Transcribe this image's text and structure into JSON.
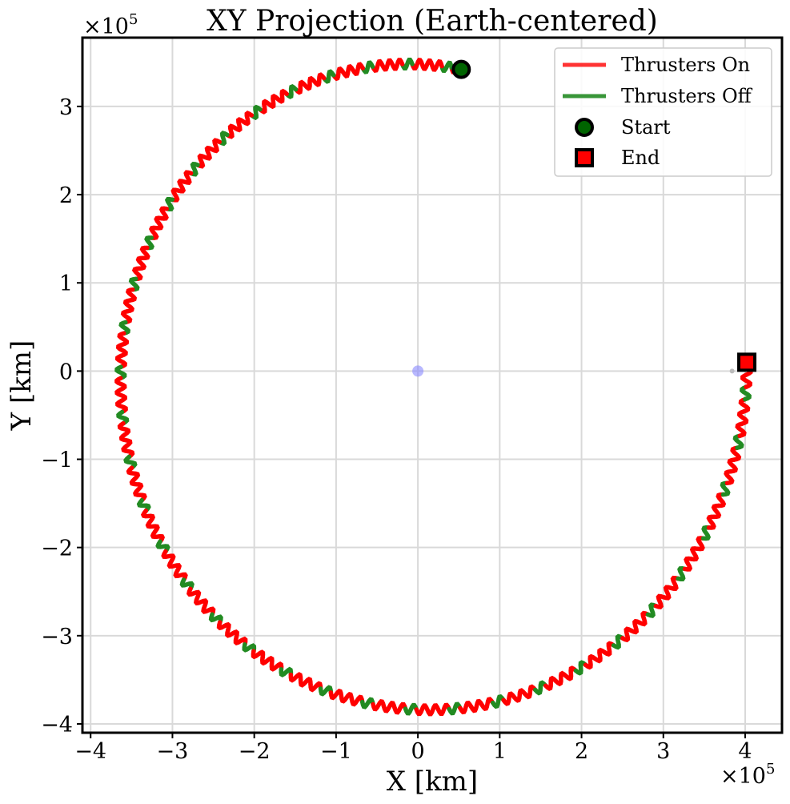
{
  "chart_data": {
    "type": "line",
    "title": "XY Projection (Earth-centered)",
    "xlabel": "X [km]",
    "ylabel": "Y [km]",
    "x_multiplier": {
      "base": "×10",
      "exp": "5"
    },
    "y_multiplier": {
      "base": "×10",
      "exp": "5"
    },
    "xlim": [
      -410000,
      445000
    ],
    "ylim": [
      -410000,
      378000
    ],
    "x_ticks": [
      -400000,
      -300000,
      -200000,
      -100000,
      0,
      100000,
      200000,
      300000,
      400000
    ],
    "x_tick_labels": [
      "−4",
      "−3",
      "−2",
      "−1",
      "0",
      "1",
      "2",
      "3",
      "4"
    ],
    "y_ticks": [
      -400000,
      -300000,
      -200000,
      -100000,
      0,
      100000,
      200000,
      300000
    ],
    "y_tick_labels": [
      "−4",
      "−3",
      "−2",
      "−1",
      "0",
      "1",
      "2",
      "3"
    ],
    "grid": true,
    "legend_position": "top-right",
    "legend": [
      {
        "label": "Thrusters On",
        "type": "line",
        "color": "#ff0000"
      },
      {
        "label": "Thrusters Off",
        "type": "line",
        "color": "#228b22"
      },
      {
        "label": "Start",
        "type": "circle",
        "color": "#006400"
      },
      {
        "label": "End",
        "type": "square",
        "color": "#ff0000"
      }
    ],
    "colors": {
      "thrusters_on": "#ff0000",
      "thrusters_off": "#228b22",
      "earth": "#8888ff",
      "grid": "#d9d9d9"
    },
    "series": [
      {
        "name": "Thrusters On",
        "description_points": [
          [
            53000,
            342000
          ],
          [
            0,
            340000
          ],
          [
            -100000,
            320000
          ],
          [
            -200000,
            265000
          ],
          [
            -300000,
            170000
          ],
          [
            -355000,
            60000
          ],
          [
            -370000,
            0
          ],
          [
            -360000,
            -100000
          ],
          [
            -320000,
            -200000
          ],
          [
            -250000,
            -280000
          ],
          [
            -150000,
            -340000
          ],
          [
            0,
            -373000
          ],
          [
            150000,
            -355000
          ],
          [
            250000,
            -290000
          ],
          [
            330000,
            -200000
          ],
          [
            385000,
            -100000
          ],
          [
            402000,
            0
          ],
          [
            402000,
            10000
          ]
        ]
      },
      {
        "name": "Thrusters Off"
      }
    ],
    "trajectory": {
      "start": [
        53000,
        342000
      ],
      "end": [
        402000,
        10000
      ],
      "earth": [
        0,
        0
      ],
      "moon_marker": [
        384000,
        0
      ]
    }
  }
}
